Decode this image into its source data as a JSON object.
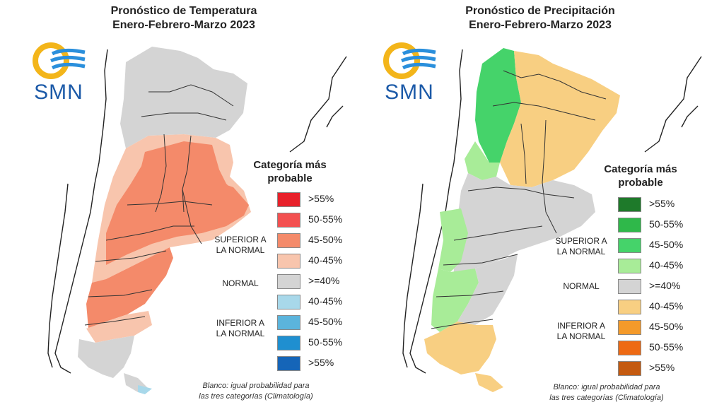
{
  "colors": {
    "temp_above": [
      "#e8202a",
      "#f35050",
      "#f48a6a",
      "#f8c5ad"
    ],
    "normal": "#d4d4d4",
    "temp_below": [
      "#a8d8ea",
      "#5bb4dc",
      "#1f8fd0",
      "#1565b8"
    ],
    "prec_above": [
      "#1e7a2a",
      "#2fb84a",
      "#45d36a",
      "#a8ec98"
    ],
    "prec_below": [
      "#f8cf82",
      "#f49a2a",
      "#ee6a14",
      "#c45a10"
    ],
    "logo_yellow": "#f3b51a",
    "logo_blue": "#2a8fdc"
  },
  "panels": [
    {
      "id": "temperature",
      "title_line1": "Pronóstico de Temperatura",
      "title_line2": "Enero-Febrero-Marzo 2023",
      "logo_text": "SMN",
      "logo_icon": "smn-logo-icon",
      "legend_title_line1": "Categoría más",
      "legend_title_line2": "probable",
      "legend_items": [
        ">55%",
        "50-55%",
        "45-50%",
        "40-45%",
        ">=40%",
        "40-45%",
        "45-50%",
        "50-55%",
        ">55%"
      ],
      "category_superior_line1": "SUPERIOR A",
      "category_superior_line2": "LA NORMAL",
      "category_normal": "NORMAL",
      "category_inferior_line1": "INFERIOR A",
      "category_inferior_line2": "LA NORMAL",
      "note_line1": "Blanco: igual probabilidad para",
      "note_line2": "las tres categorías (Climatología)"
    },
    {
      "id": "precipitation",
      "title_line1": "Pronóstico de Precipitación",
      "title_line2": "Enero-Febrero-Marzo 2023",
      "logo_text": "SMN",
      "logo_icon": "smn-logo-icon",
      "legend_title_line1": "Categoría más",
      "legend_title_line2": "probable",
      "legend_items": [
        ">55%",
        "50-55%",
        "45-50%",
        "40-45%",
        ">=40%",
        "40-45%",
        "45-50%",
        "50-55%",
        ">55%"
      ],
      "category_superior_line1": "SUPERIOR A",
      "category_superior_line2": "LA NORMAL",
      "category_normal": "NORMAL",
      "category_inferior_line1": "INFERIOR A",
      "category_inferior_line2": "LA NORMAL",
      "note_line1": "Blanco: igual probabilidad para",
      "note_line2": "las tres categorías (Climatología)"
    }
  ]
}
